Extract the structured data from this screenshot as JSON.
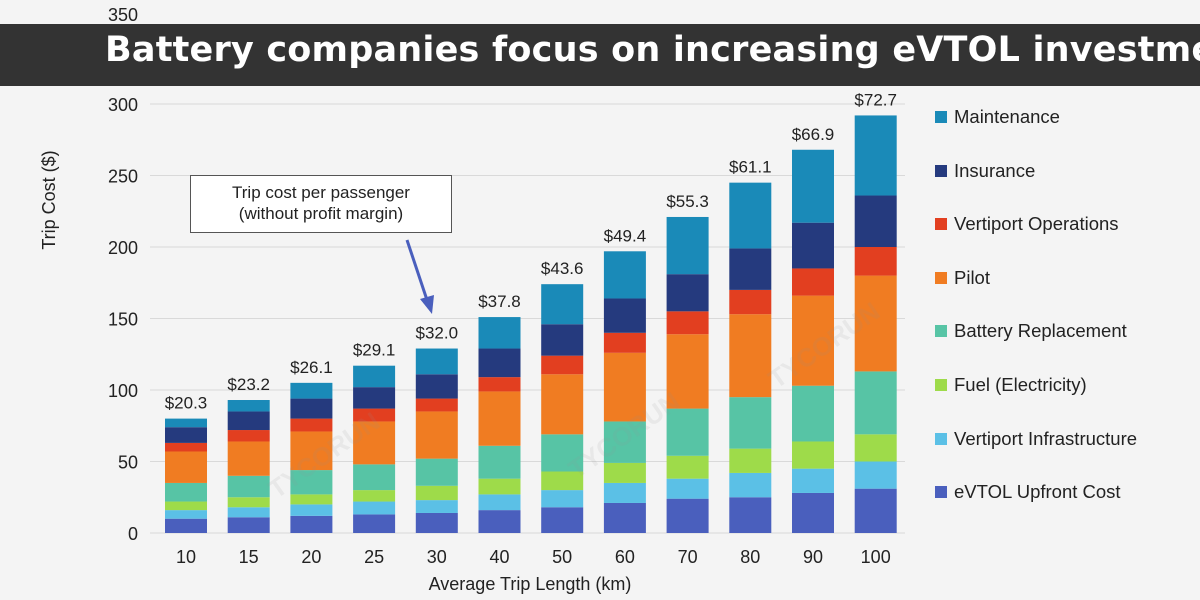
{
  "banner": {
    "title": "Battery companies focus on increasing eVTOL investment"
  },
  "watermark": "TYCORUN",
  "annotation": {
    "line1": "Trip cost per passenger",
    "line2": "(without profit margin)"
  },
  "chart_data": {
    "type": "bar",
    "stacked": true,
    "xlabel": "Average Trip Length (km)",
    "ylabel": "Trip Cost ($)",
    "ylim": [
      0,
      350
    ],
    "yticks": [
      0,
      50,
      100,
      150,
      200,
      250,
      300,
      350
    ],
    "grid": true,
    "legend_position": "right",
    "categories": [
      "10",
      "15",
      "20",
      "25",
      "30",
      "40",
      "50",
      "60",
      "70",
      "80",
      "90",
      "100"
    ],
    "data_labels": [
      "$20.3",
      "$23.2",
      "$26.1",
      "$29.1",
      "$32.0",
      "$37.8",
      "$43.6",
      "$49.4",
      "$55.3",
      "$61.1",
      "$66.9",
      "$72.7"
    ],
    "series": [
      {
        "name": "eVTOL Upfront Cost",
        "color": "#4a5fbd",
        "values": [
          10,
          11,
          12,
          13,
          14,
          16,
          18,
          21,
          24,
          25,
          28,
          31
        ]
      },
      {
        "name": "Vertiport Infrastructure",
        "color": "#5bc0e6",
        "values": [
          6,
          7,
          8,
          9,
          9,
          11,
          12,
          14,
          14,
          17,
          17,
          19
        ]
      },
      {
        "name": "Fuel (Electricity)",
        "color": "#9edb4a",
        "values": [
          6,
          7,
          7,
          8,
          10,
          11,
          13,
          14,
          16,
          17,
          19,
          19
        ]
      },
      {
        "name": "Battery Replacement",
        "color": "#57c4a5",
        "values": [
          13,
          15,
          17,
          18,
          19,
          23,
          26,
          29,
          33,
          36,
          39,
          44
        ]
      },
      {
        "name": "Pilot",
        "color": "#f07c22",
        "values": [
          22,
          24,
          27,
          30,
          33,
          38,
          42,
          48,
          52,
          58,
          63,
          67
        ]
      },
      {
        "name": "Vertiport Operations",
        "color": "#e23f20",
        "values": [
          6,
          8,
          9,
          9,
          9,
          10,
          13,
          14,
          16,
          17,
          19,
          20
        ]
      },
      {
        "name": "Insurance",
        "color": "#253a7e",
        "values": [
          11,
          13,
          14,
          15,
          17,
          20,
          22,
          24,
          26,
          29,
          32,
          36
        ]
      },
      {
        "name": "Maintenance",
        "color": "#1a8ab8",
        "values": [
          6,
          8,
          11,
          15,
          18,
          22,
          28,
          33,
          40,
          46,
          51,
          56
        ]
      }
    ]
  }
}
